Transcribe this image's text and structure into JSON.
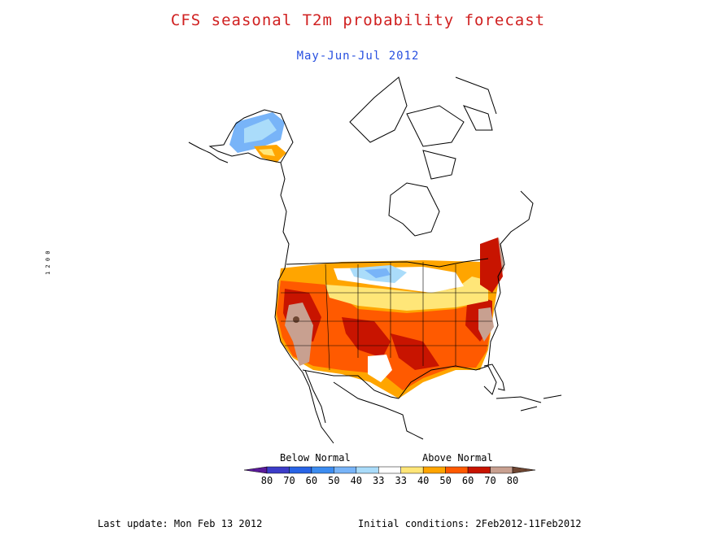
{
  "header": {
    "title": "CFS seasonal T2m probability forecast",
    "subtitle": "May-Jun-Jul 2012",
    "title_color": "#d02020",
    "subtitle_color": "#2850e0"
  },
  "legend": {
    "below_label": "Below Normal",
    "above_label": "Above Normal",
    "ticks": [
      "80",
      "70",
      "60",
      "50",
      "40",
      "33",
      "33",
      "40",
      "50",
      "60",
      "70",
      "80"
    ],
    "colors": [
      "#5a1a9a",
      "#3c3cc8",
      "#2864e6",
      "#3c8cf0",
      "#78b4f8",
      "#aadcfa",
      "#ffffff",
      "#ffe678",
      "#ffa500",
      "#ff5a00",
      "#c81400",
      "#c8a090",
      "#6e4632"
    ]
  },
  "footer": {
    "last_update": "Last update: Mon Feb 13 2012",
    "initial_conditions": "Initial conditions: 2Feb2012-11Feb2012"
  },
  "side_text": "1 2 0 0"
}
